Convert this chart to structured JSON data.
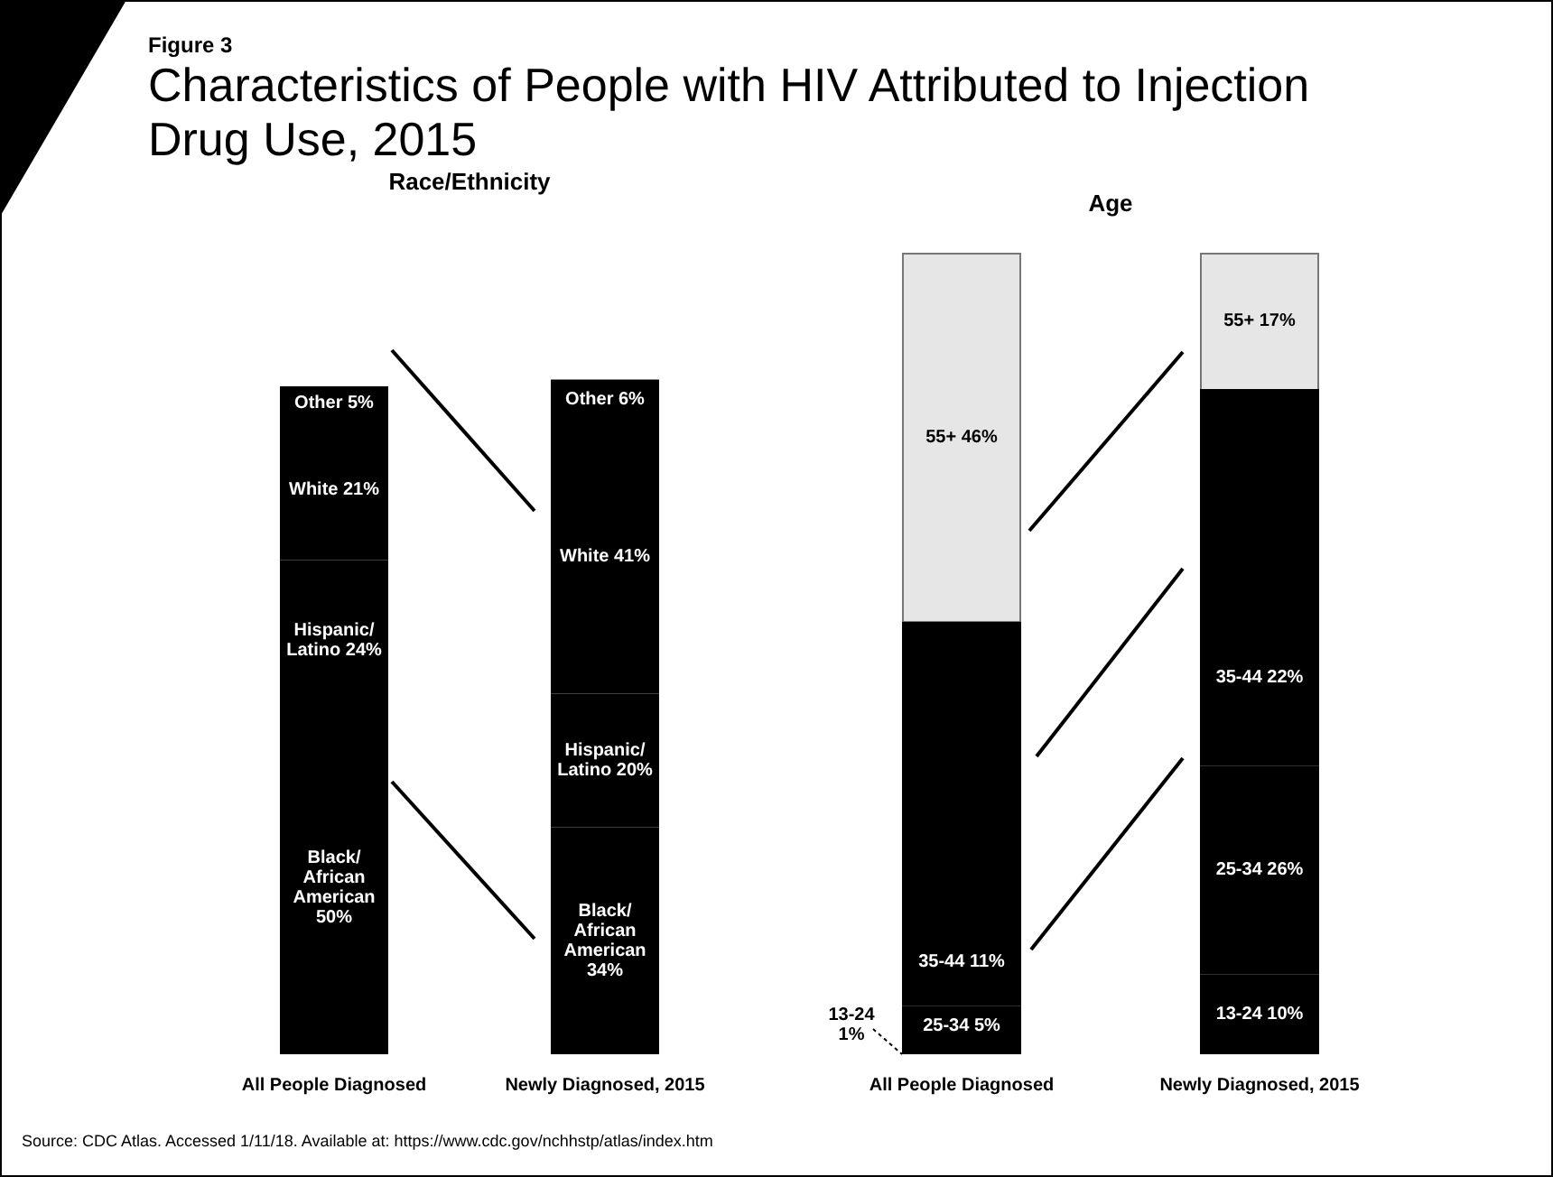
{
  "chart_data": [
    {
      "type": "bar",
      "title": "Characteristics of People with HIV Attributed to Injection Drug Use, 2015",
      "subtitle": "Race/Ethnicity",
      "stacked": true,
      "tick_labels": "x",
      "legend": false,
      "annotations": [
        "Figure 3",
        "Source: CDC Atlas. Accessed 1/11/18. Available at: https://www.cdc.gov/nchhstp/atlas/index.htm"
      ],
      "categories": [
        "All People Diagnosed",
        "Newly Diagnosed, 2015"
      ],
      "series": [
        {
          "color": "#000000",
          "values": [
            50,
            34
          ],
          "value_labels": [
            "Black/ African American 50%",
            "Black/ African American 34%"
          ]
        },
        {
          "color": "#000000",
          "values": [
            24,
            20
          ],
          "value_labels": [
            "Hispanic/ Latino 24%",
            "Hispanic/ Latino 20%"
          ]
        },
        {
          "color": "#000000",
          "values": [
            21,
            41
          ],
          "value_labels": [
            "White 21%",
            "White 41%"
          ]
        },
        {
          "color": "#000000",
          "values": [
            5,
            6
          ],
          "value_labels": [
            "Other 5%",
            "Other 6%"
          ]
        }
      ]
    },
    {
      "type": "bar",
      "title": "Age",
      "stacked": true,
      "tick_labels": "x",
      "legend": false,
      "categories": [
        "All People Diagnosed",
        "Newly Diagnosed, 2015"
      ],
      "series": [
        {
          "color": "#000000",
          "values": [
            1,
            10
          ],
          "value_labels": [
            "13-24 1%",
            "13-24 10%"
          ]
        },
        {
          "color": "#000000",
          "values": [
            5,
            26
          ],
          "value_labels": [
            "25-34 5%",
            "25-34 26%"
          ]
        },
        {
          "color": "#000000",
          "values": [
            11,
            22
          ],
          "value_labels": [
            "35-44 11%",
            "35-44 22%"
          ]
        },
        {
          "color": "#000000",
          "values": [
            37,
            25
          ],
          "value_labels": [
            null,
            null
          ]
        },
        {
          "color": "#e6e6e6",
          "values": [
            46,
            17
          ],
          "value_labels": [
            "55+ 46%",
            "55+ 17%"
          ]
        }
      ]
    }
  ]
}
